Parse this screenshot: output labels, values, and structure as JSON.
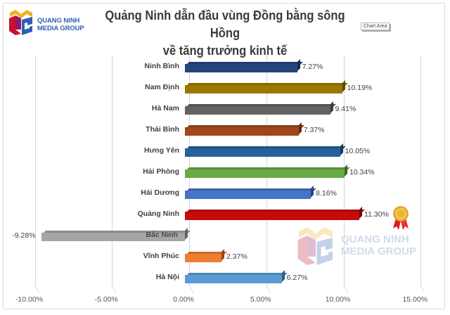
{
  "brand": {
    "line1": "QUANG NINH",
    "line2": "MEDIA GROUP",
    "colors": {
      "red": "#c8102e",
      "yellow": "#f2b21b",
      "blue": "#2f5fb0"
    }
  },
  "title": {
    "line1": "Quảng Ninh dẫn đầu vùng Đồng bằng sông Hồng",
    "line2": "về tăng trưởng kinh tế"
  },
  "tooltip": "Chart Area",
  "watermark": {
    "line1": "QUANG NINH",
    "line2": "MEDIA GROUP"
  },
  "chart_data": {
    "type": "bar",
    "orientation": "horizontal",
    "style": "3d-clustered",
    "title": "Quảng Ninh dẫn đầu vùng Đồng bằng sông Hồng về tăng trưởng kinh tế",
    "xlabel": "",
    "ylabel": "",
    "xlim": [
      -10,
      15
    ],
    "x_ticks": [
      "-10.00%",
      "-5.00%",
      "0.00%",
      "5.00%",
      "10.00%",
      "15.00%"
    ],
    "grid": true,
    "legend": null,
    "categories": [
      "Ninh Bình",
      "Nam Định",
      "Hà Nam",
      "Thái Bình",
      "Hưng Yên",
      "Hải Phòng",
      "Hải Dương",
      "Quảng Ninh",
      "Bắc Ninh",
      "Vĩnh Phúc",
      "Hà Nội"
    ],
    "values": [
      7.27,
      10.19,
      9.41,
      7.37,
      10.05,
      10.34,
      8.16,
      11.3,
      -9.28,
      2.37,
      6.27
    ],
    "labels": [
      "7.27%",
      "10.19%",
      "9.41%",
      "7.37%",
      "10.05%",
      "10.34%",
      "8.16%",
      "11.30%",
      "-9.28%",
      "2.37%",
      "6.27%"
    ],
    "colors": [
      "#23467e",
      "#9c7800",
      "#626262",
      "#a0461a",
      "#27609a",
      "#6aaa45",
      "#4674c8",
      "#c40a0a",
      "#a5a5a5",
      "#ed7d31",
      "#5b9bd5"
    ],
    "annotations": [
      {
        "category": "Quảng Ninh",
        "icon": "medal-icon"
      }
    ]
  }
}
